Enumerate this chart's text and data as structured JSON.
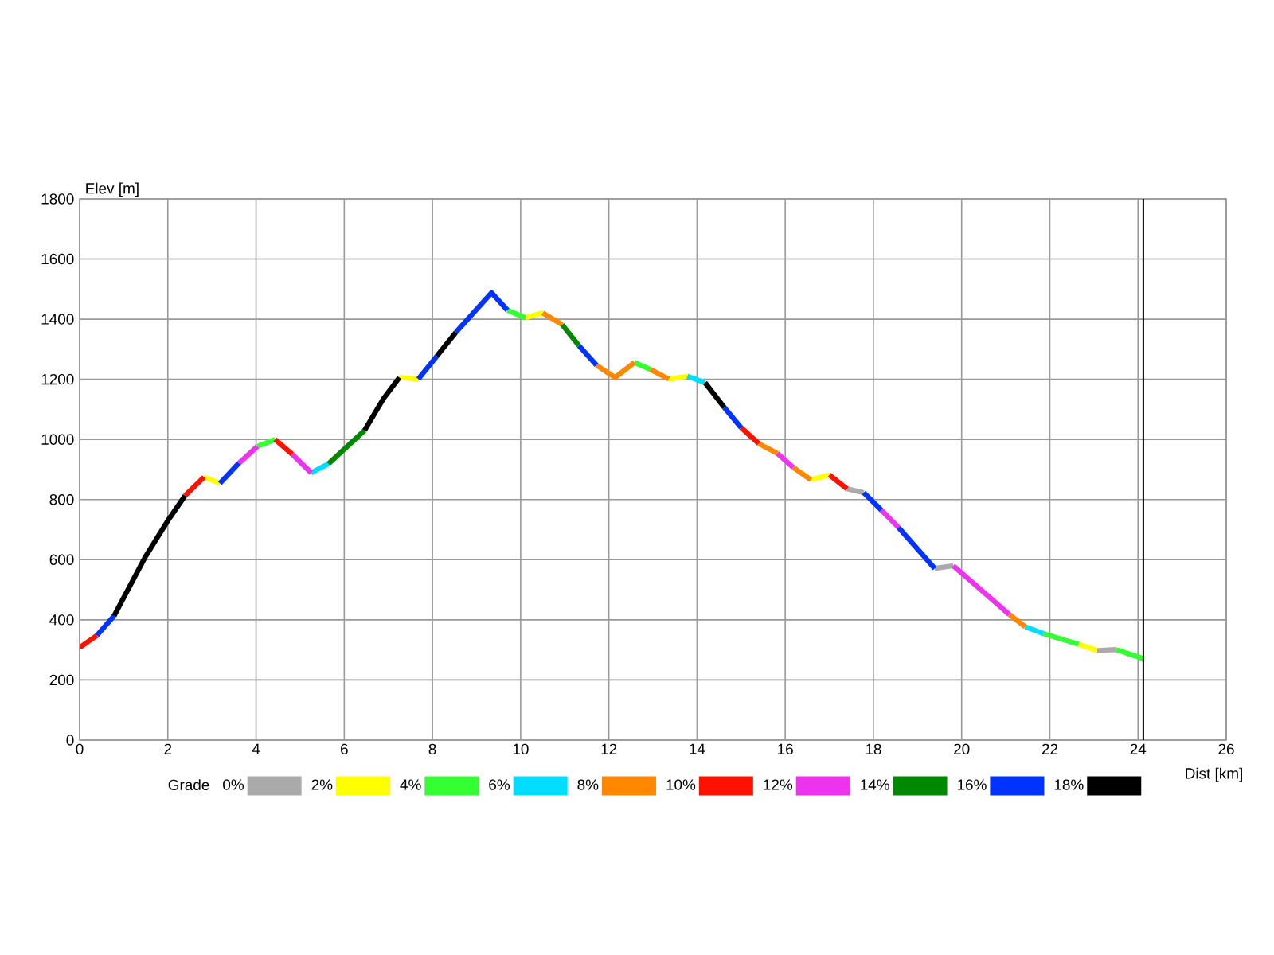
{
  "chart_data": {
    "type": "line",
    "xlabel": "Dist [km]",
    "ylabel": "Elev [m]",
    "legend_title": "Grade",
    "xlim": [
      0,
      26
    ],
    "ylim": [
      0,
      1800
    ],
    "xticks": [
      0,
      2,
      4,
      6,
      8,
      10,
      12,
      14,
      16,
      18,
      20,
      22,
      24,
      26
    ],
    "yticks": [
      0,
      200,
      400,
      600,
      800,
      1000,
      1200,
      1400,
      1600,
      1800
    ],
    "grid": true,
    "legend": "bottom",
    "ref_lines": [
      {
        "axis": "x",
        "value": 24.12,
        "color": "#000000"
      }
    ],
    "series": [
      {
        "name": "0%",
        "color": "#aaaaaa",
        "x": [
          17.4,
          17.78,
          null,
          19.39,
          19.81,
          null,
          23.07,
          23.5
        ],
        "values": [
          836,
          823,
          null,
          571,
          580,
          null,
          298,
          301
        ]
      },
      {
        "name": "2%",
        "color": "#ffff00",
        "x": [
          2.82,
          3.18,
          null,
          7.25,
          7.68,
          null,
          10.1,
          10.5,
          null,
          13.36,
          13.78,
          null,
          16.58,
          17.0,
          null,
          22.65,
          23.07
        ],
        "values": [
          875,
          854,
          null,
          1206,
          1201,
          null,
          1405,
          1421,
          null,
          1201,
          1210,
          null,
          866,
          882,
          null,
          319,
          298
        ]
      },
      {
        "name": "4%",
        "color": "#33ff33",
        "x": [
          4.03,
          4.43,
          null,
          9.7,
          10.1,
          null,
          12.58,
          12.94,
          null,
          21.86,
          22.65,
          null,
          23.5,
          24.12
        ],
        "values": [
          977,
          1000,
          null,
          1430,
          1405,
          null,
          1256,
          1233,
          null,
          354,
          319,
          null,
          301,
          271
        ]
      },
      {
        "name": "6%",
        "color": "#00ddff",
        "x": [
          5.25,
          5.64,
          null,
          13.78,
          14.18,
          null,
          21.44,
          21.86
        ],
        "values": [
          889,
          919,
          null,
          1210,
          1189,
          null,
          377,
          354
        ]
      },
      {
        "name": "8%",
        "color": "#ff8800",
        "x": [
          10.5,
          10.94,
          null,
          11.72,
          12.14,
          12.58,
          null,
          12.94,
          13.36,
          null,
          15.4,
          15.82,
          null,
          16.18,
          16.58,
          null,
          21.08,
          21.44
        ],
        "values": [
          1421,
          1382,
          null,
          1247,
          1206,
          1256,
          null,
          1233,
          1201,
          null,
          986,
          954,
          null,
          907,
          866,
          null,
          418,
          377
        ]
      },
      {
        "name": "10%",
        "color": "#ff1100",
        "x": [
          0,
          0.39,
          null,
          2.39,
          2.82,
          null,
          4.43,
          4.82,
          null,
          15.0,
          15.4,
          null,
          17.0,
          17.4
        ],
        "values": [
          308,
          348,
          null,
          813,
          875,
          null,
          1000,
          951,
          null,
          1039,
          986,
          null,
          882,
          836
        ]
      },
      {
        "name": "12%",
        "color": "#ee33ee",
        "x": [
          3.61,
          4.03,
          null,
          4.82,
          5.25,
          null,
          15.82,
          16.18,
          null,
          18.18,
          18.57,
          null,
          19.81,
          21.08
        ],
        "values": [
          921,
          977,
          null,
          951,
          889,
          null,
          954,
          907,
          null,
          765,
          707,
          null,
          580,
          418
        ]
      },
      {
        "name": "14%",
        "color": "#008800",
        "x": [
          5.64,
          6.46,
          null,
          10.94,
          11.32
        ],
        "values": [
          919,
          1030,
          null,
          1382,
          1312
        ]
      },
      {
        "name": "16%",
        "color": "#0033ff",
        "x": [
          0.39,
          0.78,
          null,
          3.18,
          3.61,
          null,
          7.68,
          8.1,
          null,
          8.53,
          9.34,
          9.7,
          null,
          11.32,
          11.72,
          null,
          14.62,
          15.0,
          null,
          17.78,
          18.18,
          null,
          18.57,
          19.39
        ],
        "values": [
          348,
          413,
          null,
          854,
          921,
          null,
          1201,
          1277,
          null,
          1356,
          1488,
          1430,
          null,
          1312,
          1247,
          null,
          1106,
          1039,
          null,
          823,
          765,
          null,
          707,
          571
        ]
      },
      {
        "name": "18%",
        "color": "#000000",
        "x": [
          0.78,
          1.48,
          2.0,
          2.39,
          null,
          6.46,
          6.89,
          7.25,
          null,
          8.1,
          8.53,
          null,
          14.18,
          14.62
        ],
        "values": [
          413,
          607,
          730,
          813,
          null,
          1030,
          1136,
          1206,
          null,
          1277,
          1356,
          null,
          1189,
          1106
        ]
      }
    ]
  }
}
